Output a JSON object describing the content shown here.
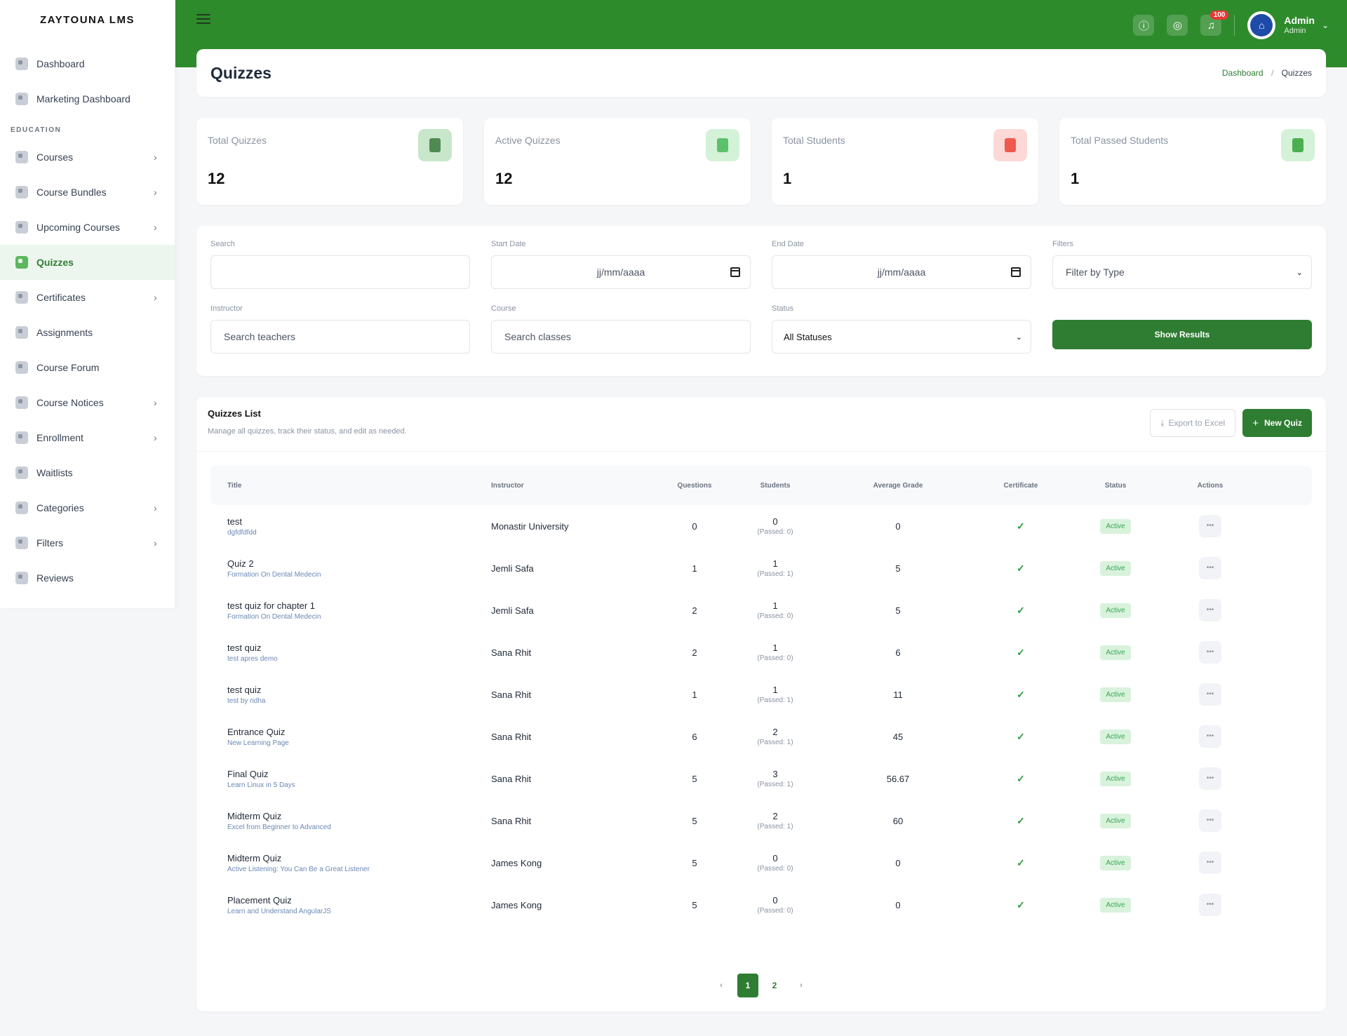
{
  "brand": "ZAYTOUNA LMS",
  "sidebar": {
    "top_items": [
      {
        "label": "Dashboard",
        "icon": "dashboard-icon"
      },
      {
        "label": "Marketing Dashboard",
        "icon": "pie-chart-icon"
      }
    ],
    "section_label": "EDUCATION",
    "items": [
      {
        "label": "Courses",
        "has_children": true,
        "icon": "video-course-icon"
      },
      {
        "label": "Course Bundles",
        "has_children": true,
        "icon": "bundle-icon"
      },
      {
        "label": "Upcoming Courses",
        "has_children": true,
        "icon": "calendar-icon"
      },
      {
        "label": "Quizzes",
        "has_children": false,
        "active": true,
        "icon": "quiz-icon"
      },
      {
        "label": "Certificates",
        "has_children": true,
        "icon": "certificate-icon"
      },
      {
        "label": "Assignments",
        "has_children": false,
        "icon": "assignment-icon"
      },
      {
        "label": "Course Forum",
        "has_children": false,
        "icon": "forum-icon"
      },
      {
        "label": "Course Notices",
        "has_children": true,
        "icon": "notice-icon"
      },
      {
        "label": "Enrollment",
        "has_children": true,
        "icon": "enrollment-icon"
      },
      {
        "label": "Waitlists",
        "has_children": false,
        "icon": "waitlist-icon"
      },
      {
        "label": "Categories",
        "has_children": true,
        "icon": "categories-icon"
      },
      {
        "label": "Filters",
        "has_children": true,
        "icon": "filter-icon"
      },
      {
        "label": "Reviews",
        "has_children": false,
        "icon": "reviews-icon"
      }
    ]
  },
  "header": {
    "notification_count": "100",
    "user_name": "Admin",
    "user_role": "Admin",
    "colors": {
      "bar": "#2e8b2c"
    }
  },
  "page": {
    "title": "Quizzes",
    "breadcrumb": {
      "home": "Dashboard",
      "current": "Quizzes"
    }
  },
  "stats": [
    {
      "label": "Total Quizzes",
      "value": "12",
      "icon_bg": "#c8e6c9",
      "icon_fg": "#4f8a53"
    },
    {
      "label": "Active Quizzes",
      "value": "12",
      "icon_bg": "#d4f2d8",
      "icon_fg": "#5bc16a"
    },
    {
      "label": "Total Students",
      "value": "1",
      "icon_bg": "#fcd9d6",
      "icon_fg": "#ef5a4e"
    },
    {
      "label": "Total Passed Students",
      "value": "1",
      "icon_bg": "#d4f2d8",
      "icon_fg": "#4caf50"
    }
  ],
  "filters": {
    "search_label": "Search",
    "start_label": "Start Date",
    "start_value": "jj/mm/aaaa",
    "end_label": "End Date",
    "end_value": "jj/mm/aaaa",
    "type_label": "Filters",
    "type_value": "Filter by Type",
    "instructor_label": "Instructor",
    "instructor_placeholder": "Search teachers",
    "course_label": "Course",
    "course_placeholder": "Search classes",
    "status_label": "Status",
    "status_value": "All Statuses",
    "show_button": "Show Results"
  },
  "list": {
    "title": "Quizzes List",
    "subtitle": "Manage all quizzes, track their status, and edit as needed.",
    "export_button": "Export to Excel",
    "new_button": "New Quiz",
    "columns": [
      "Title",
      "Instructor",
      "Questions",
      "Students",
      "Average Grade",
      "Certificate",
      "Status",
      "Actions"
    ],
    "rows": [
      {
        "title": "test",
        "course": "dgfdfdfdd",
        "instructor": "Monastir University",
        "questions": "0",
        "students": "0",
        "passed": "(Passed: 0)",
        "avg": "0",
        "status": "Active"
      },
      {
        "title": "Quiz 2",
        "course": "Formation On Dental Medecin",
        "instructor": "Jemli Safa",
        "questions": "1",
        "students": "1",
        "passed": "(Passed: 1)",
        "avg": "5",
        "status": "Active"
      },
      {
        "title": "test quiz for chapter 1",
        "course": "Formation On Dental Medecin",
        "instructor": "Jemli Safa",
        "questions": "2",
        "students": "1",
        "passed": "(Passed: 0)",
        "avg": "5",
        "status": "Active"
      },
      {
        "title": "test quiz",
        "course": "test apres demo",
        "instructor": "Sana Rhit",
        "questions": "2",
        "students": "1",
        "passed": "(Passed: 0)",
        "avg": "6",
        "status": "Active"
      },
      {
        "title": "test quiz",
        "course": "test by ridha",
        "instructor": "Sana Rhit",
        "questions": "1",
        "students": "1",
        "passed": "(Passed: 1)",
        "avg": "11",
        "status": "Active"
      },
      {
        "title": "Entrance Quiz",
        "course": "New Learning Page",
        "instructor": "Sana Rhit",
        "questions": "6",
        "students": "2",
        "passed": "(Passed: 1)",
        "avg": "45",
        "status": "Active"
      },
      {
        "title": "Final Quiz",
        "course": "Learn Linux in 5 Days",
        "instructor": "Sana Rhit",
        "questions": "5",
        "students": "3",
        "passed": "(Passed: 1)",
        "avg": "56.67",
        "status": "Active"
      },
      {
        "title": "Midterm Quiz",
        "course": "Excel from Beginner to Advanced",
        "instructor": "Sana Rhit",
        "questions": "5",
        "students": "2",
        "passed": "(Passed: 1)",
        "avg": "60",
        "status": "Active"
      },
      {
        "title": "Midterm Quiz",
        "course": "Active Listening: You Can Be a Great Listener",
        "instructor": "James Kong",
        "questions": "5",
        "students": "0",
        "passed": "(Passed: 0)",
        "avg": "0",
        "status": "Active"
      },
      {
        "title": "Placement Quiz",
        "course": "Learn and Understand AngularJS",
        "instructor": "James Kong",
        "questions": "5",
        "students": "0",
        "passed": "(Passed: 0)",
        "avg": "0",
        "status": "Active"
      }
    ]
  },
  "pagination": {
    "prev": "‹",
    "pages": [
      "1",
      "2"
    ],
    "current": "1",
    "next": "›"
  }
}
